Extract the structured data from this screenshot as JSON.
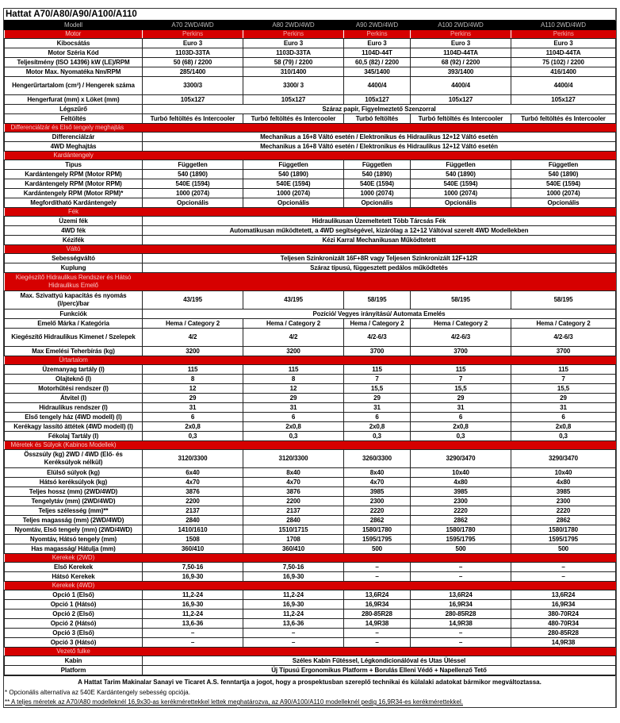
{
  "title": "Hattat A70/A80/A90/A100/A110",
  "header": {
    "label": "Modell",
    "models": [
      "A70 2WD/4WD",
      "A80 2WD/4WD",
      "A90 2WD/4WD",
      "A100 2WD/4WD",
      "A110 2WD/4WD"
    ]
  },
  "colors": {
    "section_red": "#d60000",
    "header_black": "#000000"
  },
  "sections": [
    {
      "title": "Motor",
      "sub": [
        "Perkins",
        "Perkins",
        "Perkins",
        "Perkins",
        "Perkins"
      ],
      "rows": [
        {
          "label": "Kibocsátás",
          "values": [
            "Euro 3",
            "Euro 3",
            "Euro 3",
            "Euro 3",
            "Euro 3"
          ]
        },
        {
          "label": "Motor Széria Kód",
          "values": [
            "1103D-33TA",
            "1103D-33TA",
            "1104D-44T",
            "1104D-44TA",
            "1104D-44TA"
          ]
        },
        {
          "label": "Teljesítmény (ISO 14396) kW (LE)/RPM",
          "values": [
            "50 (68) / 2200",
            "58 (79) / 2200",
            "60,5 (82) / 2200",
            "68 (92) / 2200",
            "75 (102) / 2200"
          ]
        },
        {
          "label": "Motor Max. Nyomatéka Nm/RPM",
          "values": [
            "285/1400",
            "310/1400",
            "345/1400",
            "393/1400",
            "416/1400"
          ]
        },
        {
          "label": "Hengerűrtartalom (cm³) / Hengerek száma",
          "values": [
            "3300/3",
            "3300/ 3",
            "4400/4",
            "4400/4",
            "4400/4"
          ]
        },
        {
          "label": "Hengerfurat (mm) x Löket (mm)",
          "values": [
            "105x127",
            "105x127",
            "105x127",
            "105x127",
            "105x127"
          ]
        },
        {
          "label": "Légszűrő",
          "span": "Száraz papír, Figyelmeztető Szenzorral"
        },
        {
          "label": "Feltöltés",
          "values": [
            "Turbó feltöltés és Intercooler",
            "Turbó feltöltés és Intercooler",
            "Turbó feltöltés",
            "Turbó feltöltés és Intercooler",
            "Turbó feltöltés és Intercooler"
          ]
        }
      ]
    },
    {
      "title": "Differenciálzár és Első tengely meghajtás",
      "rows": [
        {
          "label": "Differenciálzár",
          "span": "Mechanikus a 16+8 Váltó esetén / Elektronikus és Hidraulikus 12+12 Váltó esetén"
        },
        {
          "label": "4WD Meghajtás",
          "span": "Mechanikus a 16+8 Váltó esetén / Elektronikus és Hidraulikus 12+12 Váltó esetén"
        }
      ]
    },
    {
      "title": "Kardántengely",
      "rows": [
        {
          "label": "Tipus",
          "values": [
            "Független",
            "Független",
            "Független",
            "Független",
            "Független"
          ]
        },
        {
          "label": "Kardántengely RPM (Motor RPM)",
          "values": [
            "540 (1890)",
            "540 (1890)",
            "540 (1890)",
            "540 (1890)",
            "540 (1890)"
          ]
        },
        {
          "label": "Kardántengely RPM (Motor RPM)",
          "values": [
            "540E (1594)",
            "540E (1594)",
            "540E (1594)",
            "540E (1594)",
            "540E (1594)"
          ]
        },
        {
          "label": "Kardántengely RPM (Motor RPM)*",
          "values": [
            "1000 (2074)",
            "1000 (2074)",
            "1000 (2074)",
            "1000 (2074)",
            "1000 (2074)"
          ]
        },
        {
          "label": "Megfordítható Kardántengely",
          "values": [
            "Opcionális",
            "Opcionális",
            "Opcionális",
            "Opcionális",
            "Opcionális"
          ]
        }
      ]
    },
    {
      "title": "Fék",
      "rows": [
        {
          "label": "Üzemi fék",
          "span": "Hidraulikusan Üzemeltetett Több Tárcsás Fék"
        },
        {
          "label": "4WD fék",
          "span": "Automatikusan működtetett, a 4WD segítségével, kizárólag a 12+12 Váltóval szerelt 4WD Modellekben"
        },
        {
          "label": "Kézifék",
          "span": "Kézi Karral Mechanikusan Működtetett"
        }
      ]
    },
    {
      "title": "Váltó",
      "rows": [
        {
          "label": "Sebességváltó",
          "span": "Teljesen Szinkronizált 16F+8R vagy Teljesen Szinkronizált 12F+12R"
        },
        {
          "label": "Kuplung",
          "span": "Száraz típusú, függesztett pedálos működtetés"
        }
      ]
    },
    {
      "title": "Kiegészítő Hidraulikus Rendszer és Hátsó Hidraulikus Emelő",
      "rows": [
        {
          "label": "Max. Szivattyú kapacitás és nyomás (l/perc)/bar",
          "values": [
            "43/195",
            "43/195",
            "58/195",
            "58/195",
            "58/195"
          ]
        },
        {
          "label": "Funkciók",
          "span": "Pozíció/ Vegyes irányítású/ Automata Emelés"
        },
        {
          "label": "Emelő Márka / Kategória",
          "values": [
            "Hema / Category 2",
            "Hema / Category 2",
            "Hema / Category 2",
            "Hema / Category 2",
            "Hema / Category 2"
          ]
        },
        {
          "label": "Kiegészítő Hidraulikus Kimenet / Szelepek",
          "values": [
            "4/2",
            "4/2",
            "4/2-6/3",
            "4/2-6/3",
            "4/2-6/3"
          ]
        },
        {
          "label": "Max Emelési Teherbírás (kg)",
          "values": [
            "3200",
            "3200",
            "3700",
            "3700",
            "3700"
          ]
        }
      ]
    },
    {
      "title": "Ürtartalom",
      "rows": [
        {
          "label": "Üzemanyag tartály (l)",
          "values": [
            "115",
            "115",
            "115",
            "115",
            "115"
          ]
        },
        {
          "label": "Olajteknő (l)",
          "values": [
            "8",
            "8",
            "7",
            "7",
            "7"
          ]
        },
        {
          "label": "Motorhűtési rendszer (l)",
          "values": [
            "12",
            "12",
            "15,5",
            "15,5",
            "15,5"
          ]
        },
        {
          "label": "Átvitel (l)",
          "values": [
            "29",
            "29",
            "29",
            "29",
            "29"
          ]
        },
        {
          "label": "Hidraulikus rendszer (l)",
          "values": [
            "31",
            "31",
            "31",
            "31",
            "31"
          ]
        },
        {
          "label": "Első tengely ház (4WD modell) (l)",
          "values": [
            "6",
            "6",
            "6",
            "6",
            "6"
          ]
        },
        {
          "label": "Kerékagy lassító áttétek (4WD modell) (l)",
          "values": [
            "2x0,8",
            "2x0,8",
            "2x0,8",
            "2x0,8",
            "2x0,8"
          ]
        },
        {
          "label": "Fékolaj Tartály (l)",
          "values": [
            "0,3",
            "0,3",
            "0,3",
            "0,3",
            "0,3"
          ]
        }
      ]
    },
    {
      "title": "Méretek és Súlyok (Kabinos Modellek)",
      "rows": [
        {
          "label": "Összsúly (kg) 2WD / 4WD (Elő- és Keréksúlyok nélkül)",
          "values": [
            "3120/3300",
            "3120/3300",
            "3260/3300",
            "3290/3470",
            "3290/3470"
          ]
        },
        {
          "label": "Elülső súlyok (kg)",
          "values": [
            "6x40",
            "8x40",
            "8x40",
            "10x40",
            "10x40"
          ]
        },
        {
          "label": "Hátsó keréksúlyok (kg)",
          "values": [
            "4x70",
            "4x70",
            "4x70",
            "4x80",
            "4x80"
          ]
        },
        {
          "label": "Teljes hossz (mm) (2WD/4WD)",
          "values": [
            "3876",
            "3876",
            "3985",
            "3985",
            "3985"
          ]
        },
        {
          "label": "Tengelytáv (mm) (2WD/4WD)",
          "values": [
            "2200",
            "2200",
            "2300",
            "2300",
            "2300"
          ]
        },
        {
          "label": "Teljes szélesség (mm)**",
          "values": [
            "2137",
            "2137",
            "2220",
            "2220",
            "2220"
          ]
        },
        {
          "label": "Teljes magasság (mm) (2WD/4WD)",
          "values": [
            "2840",
            "2840",
            "2862",
            "2862",
            "2862"
          ]
        },
        {
          "label": "Nyomtáv, Első tengely (mm) (2WD/4WD)",
          "values": [
            "1410/1610",
            "1510/1715",
            "1580/1780",
            "1580/1780",
            "1580/1780"
          ]
        },
        {
          "label": "Nyomtáv, Hátsó tengely (mm)",
          "values": [
            "1508",
            "1708",
            "1595/1795",
            "1595/1795",
            "1595/1795"
          ]
        },
        {
          "label": "Has magasság/ Hátulja (mm)",
          "values": [
            "360/410",
            "360/410",
            "500",
            "500",
            "500"
          ]
        }
      ]
    },
    {
      "title": "Kerekek (2WD)",
      "rows": [
        {
          "label": "Első Kerekek",
          "values": [
            "7,50-16",
            "7,50-16",
            "–",
            "–",
            "–"
          ]
        },
        {
          "label": "Hátsó Kerekek",
          "values": [
            "16,9-30",
            "16,9-30",
            "–",
            "–",
            "–"
          ]
        }
      ]
    },
    {
      "title": "Kerekek (4WD)",
      "rows": [
        {
          "label": "Opció 1 (Első)",
          "values": [
            "11,2-24",
            "11,2-24",
            "13,6R24",
            "13,6R24",
            "13,6R24"
          ]
        },
        {
          "label": "Opció 1 (Hátsó)",
          "values": [
            "16,9-30",
            "16,9-30",
            "16,9R34",
            "16,9R34",
            "16,9R34"
          ]
        },
        {
          "label": "Opció 2 (Első)",
          "values": [
            "11,2-24",
            "11,2-24",
            "280-85R28",
            "280-85R28",
            "380-70R24"
          ]
        },
        {
          "label": "Opció 2 (Hátsó)",
          "values": [
            "13,6-36",
            "13,6-36",
            "14,9R38",
            "14,9R38",
            "480-70R34"
          ]
        },
        {
          "label": "Opció 3 (Első)",
          "values": [
            "–",
            "–",
            "–",
            "–",
            "280-85R28"
          ]
        },
        {
          "label": "Opció 3 (Hátsó)",
          "values": [
            "–",
            "–",
            "–",
            "–",
            "14,9R38"
          ]
        }
      ]
    },
    {
      "title": "Vezető fulke",
      "rows": [
        {
          "label": "Kabin",
          "span": "Széles Kabin Fűtéssel, Légkondicionálóval és Utas Üléssel"
        },
        {
          "label": "Platform",
          "span": "Új Típusú Ergonomikus Platform + Borulás Elleni Védő + Napellenző Tető"
        }
      ]
    }
  ],
  "footer": {
    "disclaimer": "A Hattat Tarim Makinalar Sanayi ve Ticaret A.S. fenntartja a jogot, hogy a prospektusban szereplő technikai és külalaki adatokat bármikor megváltoztassa.",
    "note1": "* Opcionális alternatíva az 540E Kardántengely sebesség opciója.",
    "note2": "** A teljes méretek az A70/A80 modelleknél 16,9x30-as kerékmérettekkel lettek meghatározva, az A90/A100/A110 modelleknél pedig 16,9R34-es kerékmérettekkel."
  }
}
